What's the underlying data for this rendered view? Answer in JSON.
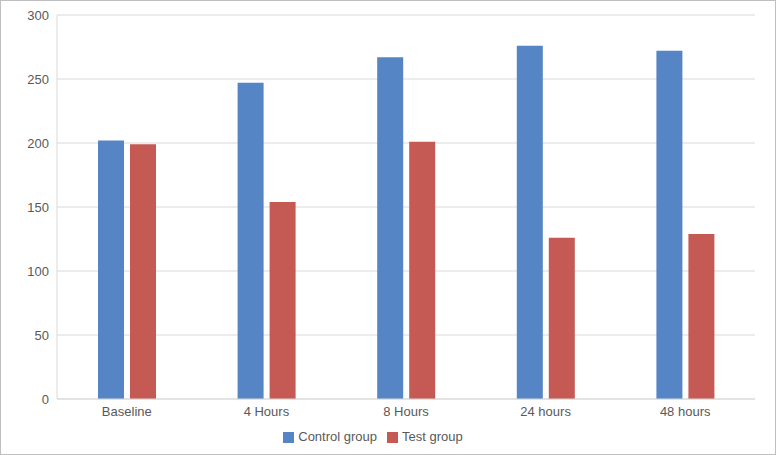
{
  "chart_data": {
    "type": "bar",
    "categories": [
      "Baseline",
      "4 Hours",
      "8 Hours",
      "24 hours",
      "48 hours"
    ],
    "series": [
      {
        "name": "Control group",
        "color": "#5585c5",
        "values": [
          202,
          247,
          267,
          276,
          272
        ]
      },
      {
        "name": "Test group",
        "color": "#c55a55",
        "values": [
          199,
          154,
          201,
          126,
          129
        ]
      }
    ],
    "ylim": [
      0,
      300
    ],
    "yticks": [
      0,
      50,
      100,
      150,
      200,
      250,
      300
    ],
    "grid": true,
    "legend": "bottom"
  }
}
